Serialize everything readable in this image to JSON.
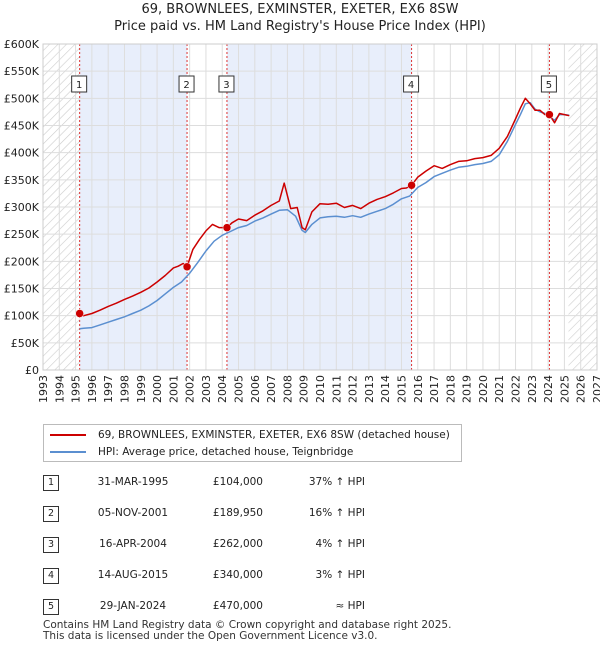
{
  "title_line1": "69, BROWNLEES, EXMINSTER, EXETER, EX6 8SW",
  "title_line2": "Price paid vs. HM Land Registry's House Price Index (HPI)",
  "chart_data": {
    "type": "line",
    "xlim": [
      1993,
      2027
    ],
    "ylim": [
      0,
      600000
    ],
    "xticks": [
      1993,
      1994,
      1995,
      1996,
      1997,
      1998,
      1999,
      2000,
      2001,
      2002,
      2003,
      2004,
      2005,
      2006,
      2007,
      2008,
      2009,
      2010,
      2011,
      2012,
      2013,
      2014,
      2015,
      2016,
      2017,
      2018,
      2019,
      2020,
      2021,
      2022,
      2023,
      2024,
      2025,
      2026,
      2027
    ],
    "yticks": [
      0,
      50000,
      100000,
      150000,
      200000,
      250000,
      300000,
      350000,
      400000,
      450000,
      500000,
      550000,
      600000
    ],
    "ytick_labels": [
      "£0",
      "£50K",
      "£100K",
      "£150K",
      "£200K",
      "£250K",
      "£300K",
      "£350K",
      "£400K",
      "£450K",
      "£500K",
      "£550K",
      "£600K"
    ],
    "grid": true,
    "hatched_ranges": [
      [
        1993,
        1995.25
      ],
      [
        2025.25,
        2027
      ]
    ],
    "shaded_ranges": [
      [
        1995.25,
        2001.84
      ],
      [
        2004.29,
        2015.62
      ]
    ],
    "series": [
      {
        "name": "69, BROWNLEES, EXMINSTER, EXETER, EX6 8SW (detached house)",
        "color": "#cc0000",
        "x": [
          1995.25,
          1995.5,
          1996,
          1996.5,
          1997,
          1997.5,
          1998,
          1998.5,
          1999,
          1999.5,
          2000,
          2000.5,
          2001,
          2001.3,
          2001.6,
          2001.84,
          2002.2,
          2002.6,
          2003,
          2003.4,
          2003.8,
          2004.29,
          2004.6,
          2005,
          2005.5,
          2006,
          2006.5,
          2007,
          2007.5,
          2007.8,
          2008.2,
          2008.6,
          2008.9,
          2009.1,
          2009.5,
          2010,
          2010.5,
          2011,
          2011.5,
          2012,
          2012.5,
          2013,
          2013.5,
          2014,
          2014.5,
          2015,
          2015.3,
          2015.62,
          2016,
          2016.5,
          2017,
          2017.5,
          2018,
          2018.5,
          2019,
          2019.5,
          2020,
          2020.5,
          2021,
          2021.5,
          2022,
          2022.3,
          2022.6,
          2022.9,
          2023.2,
          2023.5,
          2023.8,
          2024.08,
          2024.4,
          2024.7,
          2025,
          2025.3
        ],
        "y": [
          104000,
          100000,
          104000,
          110000,
          117000,
          123000,
          130000,
          136000,
          143000,
          151000,
          162000,
          174000,
          188000,
          191000,
          196000,
          189950,
          222000,
          240000,
          256000,
          268000,
          262000,
          262000,
          271000,
          278000,
          275000,
          285000,
          293000,
          303000,
          311000,
          344000,
          297000,
          299000,
          262000,
          258000,
          291000,
          306000,
          305000,
          307000,
          299000,
          303000,
          297000,
          307000,
          314000,
          319000,
          326000,
          334000,
          335000,
          340000,
          355000,
          366000,
          376000,
          371000,
          378000,
          384000,
          385000,
          389000,
          391000,
          395000,
          408000,
          430000,
          462000,
          482000,
          500000,
          490000,
          478000,
          478000,
          470000,
          470000,
          455000,
          472000,
          470000,
          468000
        ]
      },
      {
        "name": "HPI: Average price, detached house, Teignbridge",
        "color": "#5b8fd0",
        "x": [
          1995.25,
          1995.5,
          1996,
          1996.5,
          1997,
          1997.5,
          1998,
          1998.5,
          1999,
          1999.5,
          2000,
          2000.5,
          2001,
          2001.5,
          2002,
          2002.5,
          2003,
          2003.5,
          2004,
          2004.5,
          2005,
          2005.5,
          2006,
          2006.5,
          2007,
          2007.5,
          2008,
          2008.5,
          2008.9,
          2009.1,
          2009.5,
          2010,
          2010.5,
          2011,
          2011.5,
          2012,
          2012.5,
          2013,
          2013.5,
          2014,
          2014.5,
          2015,
          2015.5,
          2016,
          2016.5,
          2017,
          2017.5,
          2018,
          2018.5,
          2019,
          2019.5,
          2020,
          2020.5,
          2021,
          2021.5,
          2022,
          2022.3,
          2022.6,
          2022.9,
          2023.2,
          2023.5,
          2023.8,
          2024.1,
          2024.4,
          2024.7,
          2025,
          2025.3
        ],
        "y": [
          76000,
          77000,
          78000,
          83000,
          88000,
          93000,
          98000,
          104000,
          110000,
          118000,
          128000,
          140000,
          152000,
          162000,
          178000,
          198000,
          219000,
          237000,
          248000,
          255000,
          262000,
          266000,
          274000,
          280000,
          287000,
          294000,
          295000,
          283000,
          257000,
          253000,
          268000,
          280000,
          282000,
          283000,
          281000,
          284000,
          281000,
          287000,
          292000,
          297000,
          305000,
          315000,
          320000,
          336000,
          345000,
          356000,
          362000,
          368000,
          373000,
          375000,
          378000,
          380000,
          384000,
          396000,
          421000,
          452000,
          470000,
          490000,
          492000,
          480000,
          475000,
          472000,
          465000,
          460000,
          470000,
          470000,
          469000
        ]
      }
    ],
    "transactions": [
      {
        "id": "1",
        "date": "31-MAR-1995",
        "x": 1995.25,
        "price": 104000,
        "price_label": "£104,000",
        "hpi": "37% ↑ HPI"
      },
      {
        "id": "2",
        "date": "05-NOV-2001",
        "x": 2001.84,
        "price": 189950,
        "price_label": "£189,950",
        "hpi": "16% ↑ HPI"
      },
      {
        "id": "3",
        "date": "16-APR-2004",
        "x": 2004.29,
        "price": 262000,
        "price_label": "£262,000",
        "hpi": "4% ↑ HPI"
      },
      {
        "id": "4",
        "date": "14-AUG-2015",
        "x": 2015.62,
        "price": 340000,
        "price_label": "£340,000",
        "hpi": "3% ↑ HPI"
      },
      {
        "id": "5",
        "date": "29-JAN-2024",
        "x": 2024.08,
        "price": 470000,
        "price_label": "£470,000",
        "hpi": "≈ HPI"
      }
    ]
  },
  "legend": {
    "red_label": "69, BROWNLEES, EXMINSTER, EXETER, EX6 8SW (detached house)",
    "blue_label": "HPI: Average price, detached house, Teignbridge"
  },
  "footer": {
    "line1": "Contains HM Land Registry data © Crown copyright and database right 2025.",
    "line2": "This data is licensed under the Open Government Licence v3.0."
  }
}
